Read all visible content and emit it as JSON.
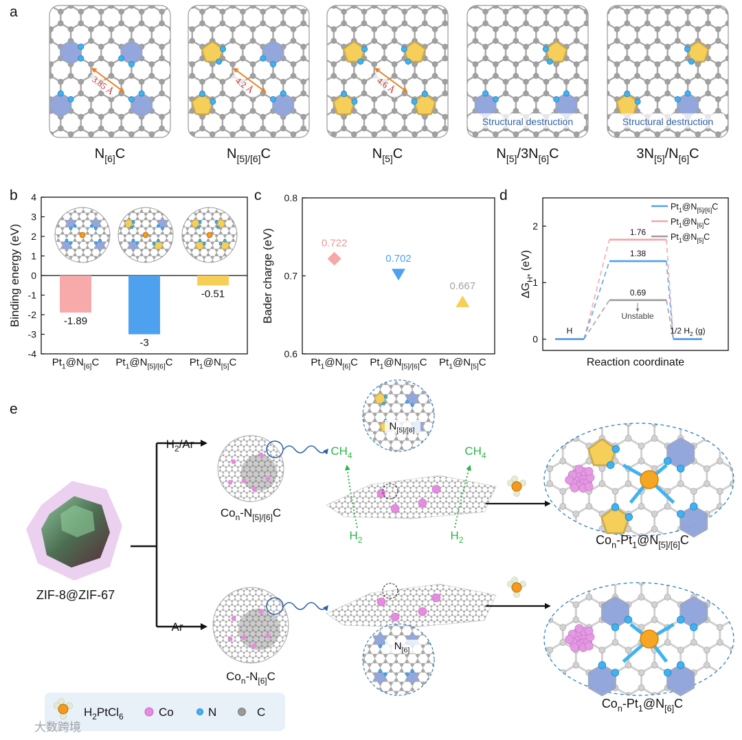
{
  "panel_labels": [
    "a",
    "b",
    "c",
    "d",
    "e"
  ],
  "panel_a": {
    "structures": [
      {
        "label": [
          "N",
          "[6]",
          "C"
        ],
        "distance": "3.85 Å"
      },
      {
        "label": [
          "N",
          "[5]/[6]",
          "C"
        ],
        "distance": "4.2 Å"
      },
      {
        "label": [
          "N",
          "[5]",
          "C"
        ],
        "distance": "4.6 Å"
      },
      {
        "label": [
          "N",
          "[5]",
          "/3N",
          "[6]",
          "C"
        ],
        "note": "Structural destruction"
      },
      {
        "label": [
          "3N",
          "[5]",
          "/N",
          "[6]",
          "C"
        ],
        "note": "Structural destruction"
      }
    ]
  },
  "chart_data": [
    {
      "type": "bar",
      "categories": [
        [
          "Pt",
          "1",
          "@N",
          "[6]",
          "C"
        ],
        [
          "Pt",
          "1",
          "@N",
          "[5]/[6]",
          "C"
        ],
        [
          "Pt",
          "1",
          "@N",
          "[5]",
          "C"
        ]
      ],
      "values": [
        -1.89,
        -3,
        -0.51
      ],
      "colors": [
        "#f8aaaa",
        "#4ea1ef",
        "#f7cf56"
      ],
      "ylabel": "Binding energy (eV)",
      "ylim": [
        -4,
        4
      ],
      "yticks": [
        -4,
        -3,
        -2,
        -1,
        0,
        1,
        2,
        3,
        4
      ]
    },
    {
      "type": "scatter",
      "categories": [
        [
          "Pt",
          "1",
          "@N",
          "[6]",
          "C"
        ],
        [
          "Pt",
          "1",
          "@N",
          "[5]/[6]",
          "C"
        ],
        [
          "Pt",
          "1",
          "@N",
          "[5]",
          "C"
        ]
      ],
      "values": [
        0.722,
        0.702,
        0.667
      ],
      "colors": [
        "#f6a7a7",
        "#4ea1ef",
        "#f7cf56"
      ],
      "label_colors": [
        "#f09494",
        "#4ea1ef",
        "#a3a3a3"
      ],
      "markers": [
        "diamond",
        "triangle-down",
        "triangle-up"
      ],
      "ylabel": "Bader charge (eV)",
      "ylim": [
        0.6,
        0.8
      ],
      "yticks": [
        0.6,
        0.7,
        0.8
      ]
    },
    {
      "type": "energy-diagram",
      "categories": [
        "H",
        null,
        [
          "1/2 H",
          "2",
          " (g)"
        ]
      ],
      "series": [
        {
          "name": [
            "Pt",
            "1",
            "@N",
            "[5]/[6]",
            "C"
          ],
          "color": "#4ea1ef",
          "values": [
            0,
            1.38,
            0
          ]
        },
        {
          "name": [
            "Pt",
            "1",
            "@N",
            "[6]",
            "C"
          ],
          "color": "#f4a3a3",
          "values": [
            0,
            1.76,
            0
          ]
        },
        {
          "name": [
            "Pt",
            "1",
            "@N",
            "[5]",
            "C"
          ],
          "color": "#9c9c9c",
          "values": [
            0,
            0.69,
            0
          ]
        }
      ],
      "annotation": "Unstable",
      "xlabel": "Reaction coordinate",
      "ylabel": [
        "ΔG",
        "H*",
        " (eV)"
      ],
      "ylim": [
        -0.2,
        2.5
      ],
      "yticks": [
        0,
        1,
        2
      ],
      "legend": "upper right"
    }
  ],
  "panel_e": {
    "conditions": [
      [
        "H",
        "2",
        "/Ar"
      ],
      "Ar"
    ],
    "precursor": "ZIF-8@ZIF-67",
    "intermediates": [
      [
        "Co",
        "n",
        "-N",
        "[5]/[6]",
        "C"
      ],
      [
        "Co",
        "n",
        "-N",
        "[6]",
        "C"
      ]
    ],
    "inset_labels": [
      [
        "N",
        "[5]/[6]"
      ],
      [
        "N",
        "[6]"
      ]
    ],
    "gas_labels": [
      [
        "CH",
        "4"
      ],
      [
        "CH",
        "4"
      ],
      [
        "H",
        "2"
      ],
      [
        "H",
        "2"
      ]
    ],
    "products": [
      [
        "Co",
        "n",
        "-Pt",
        "1",
        "@N",
        "[5]/[6]",
        "C"
      ],
      [
        "Co",
        "n",
        "-Pt",
        "1",
        "@N",
        "[6]",
        "C"
      ]
    ],
    "legend": [
      [
        "H",
        "2",
        "PtCl",
        "6"
      ],
      "Co",
      "N",
      "C"
    ],
    "watermark": "大数跨境"
  }
}
